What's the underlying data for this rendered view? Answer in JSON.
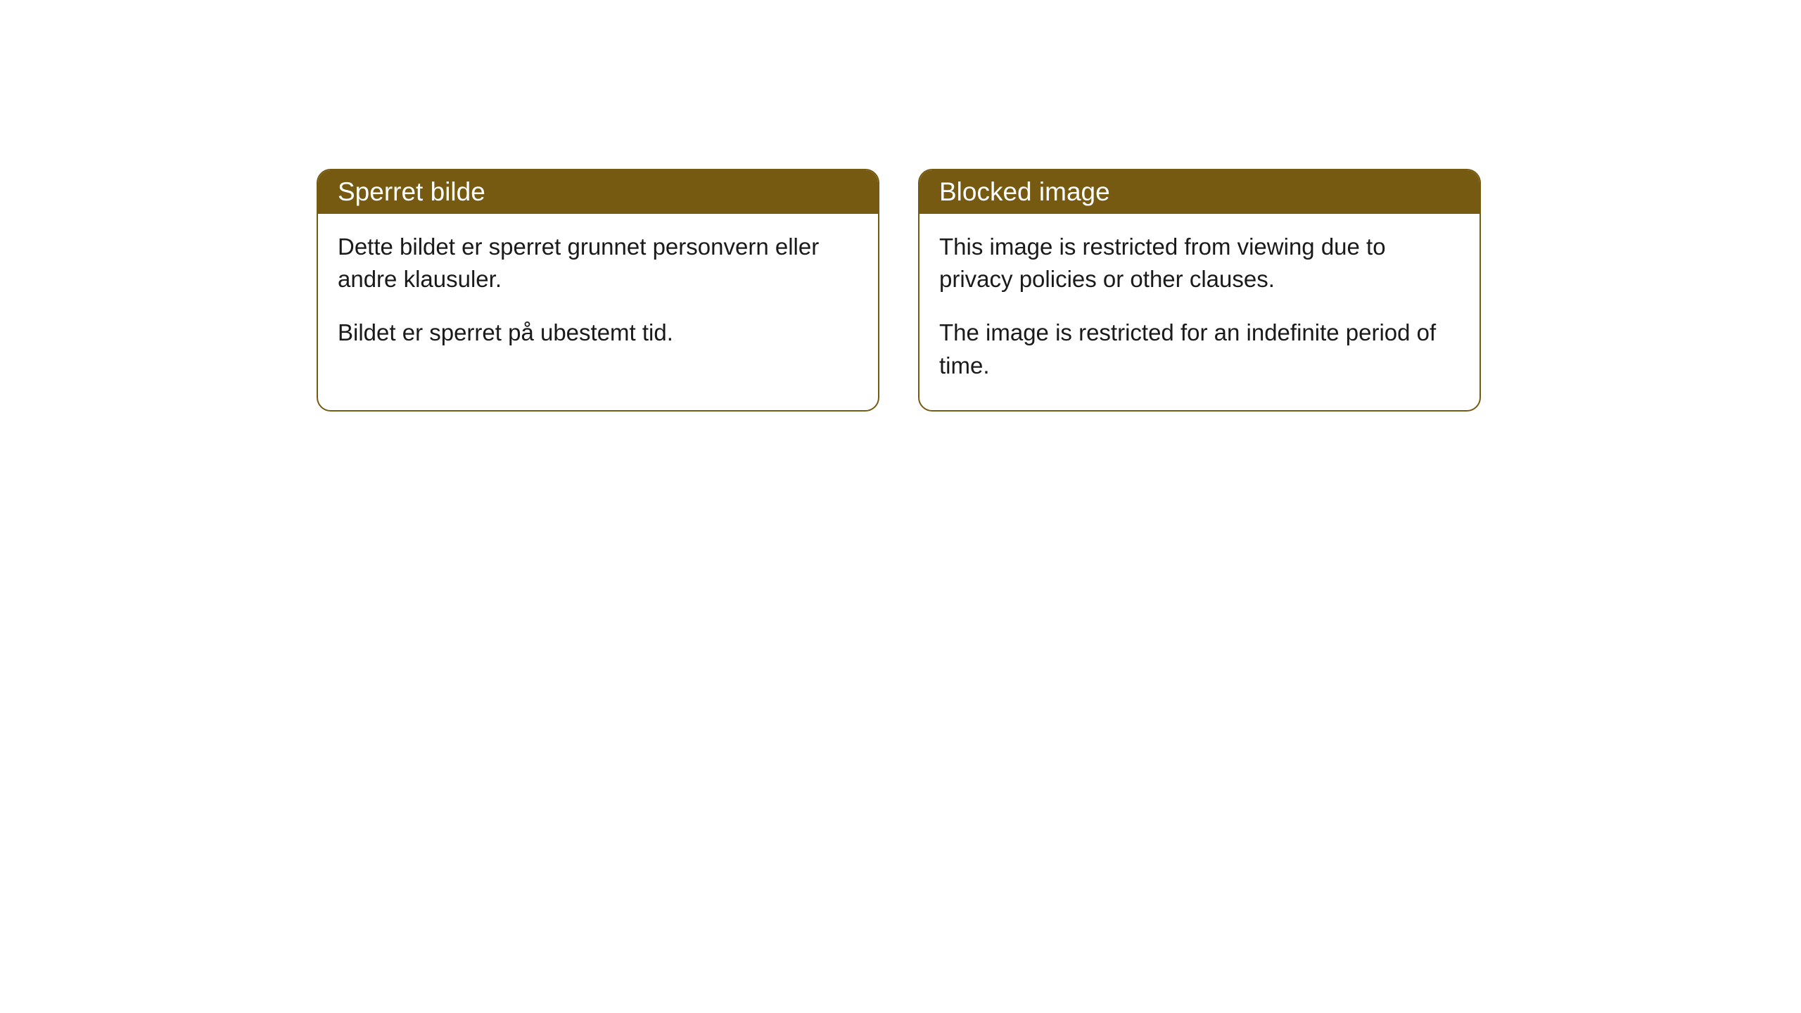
{
  "cards": [
    {
      "header": "Sperret bilde",
      "paragraph1": "Dette bildet er sperret grunnet personvern eller andre klausuler.",
      "paragraph2": "Bildet er sperret på ubestemt tid."
    },
    {
      "header": "Blocked image",
      "paragraph1": "This image is restricted from viewing due to privacy policies or other clauses.",
      "paragraph2": "The image is restricted for an indefinite period of time."
    }
  ],
  "colors": {
    "header_bg": "#765a11",
    "header_text": "#ffffff",
    "border": "#765a11",
    "body_bg": "#ffffff",
    "body_text": "#1a1a1a"
  }
}
